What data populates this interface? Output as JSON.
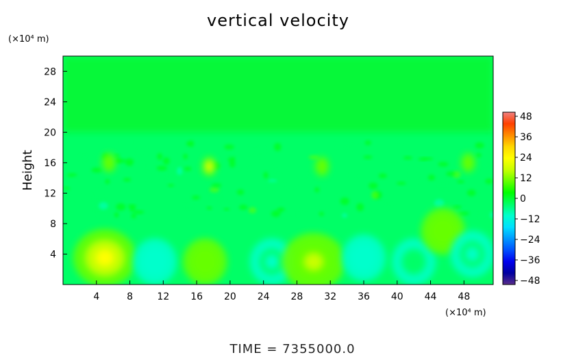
{
  "chart_data": {
    "type": "heatmap",
    "title": "vertical velocity",
    "ylabel": "Height",
    "xlabel": "",
    "x_unit_label": "(×10⁴ m)",
    "y_unit_label": "(×10⁴ m)",
    "footer": "TIME = 7355000.0",
    "xlim": [
      0,
      51.5
    ],
    "ylim": [
      0,
      30
    ],
    "x_ticks": [
      4,
      8,
      12,
      16,
      20,
      24,
      28,
      32,
      36,
      40,
      44,
      48
    ],
    "y_ticks": [
      4,
      8,
      12,
      16,
      20,
      24,
      28
    ],
    "colorbar": {
      "ticks": [
        48,
        36,
        24,
        12,
        0,
        -12,
        -24,
        -36,
        -48
      ],
      "range": [
        -48,
        48
      ],
      "colors_high_to_low": [
        "#f08080",
        "#ff4000",
        "#ff8c00",
        "#ffd700",
        "#ffff00",
        "#c8ff00",
        "#66ff00",
        "#00ff00",
        "#00ff66",
        "#00ffcc",
        "#00e0ff",
        "#0099ff",
        "#0050ff",
        "#0000ee",
        "#0000a0",
        "#5a2d8c"
      ]
    },
    "features": [
      {
        "x": 5,
        "y": 3.5,
        "value": 20
      },
      {
        "x": 11,
        "y": 3,
        "value": -12
      },
      {
        "x": 17,
        "y": 3,
        "value": 10
      },
      {
        "x": 25,
        "y": 3,
        "value": -8
      },
      {
        "x": 30,
        "y": 3,
        "value": 16
      },
      {
        "x": 36,
        "y": 3.5,
        "value": -10
      },
      {
        "x": 42,
        "y": 3,
        "value": -6
      },
      {
        "x": 45.5,
        "y": 7,
        "value": 12
      },
      {
        "x": 49,
        "y": 4,
        "value": -8
      },
      {
        "x": 17.5,
        "y": 15.5,
        "value": 22
      },
      {
        "x": 5.5,
        "y": 16,
        "value": 12
      },
      {
        "x": 31,
        "y": 15.5,
        "value": 10
      },
      {
        "x": 48.5,
        "y": 16,
        "value": 12
      }
    ]
  }
}
